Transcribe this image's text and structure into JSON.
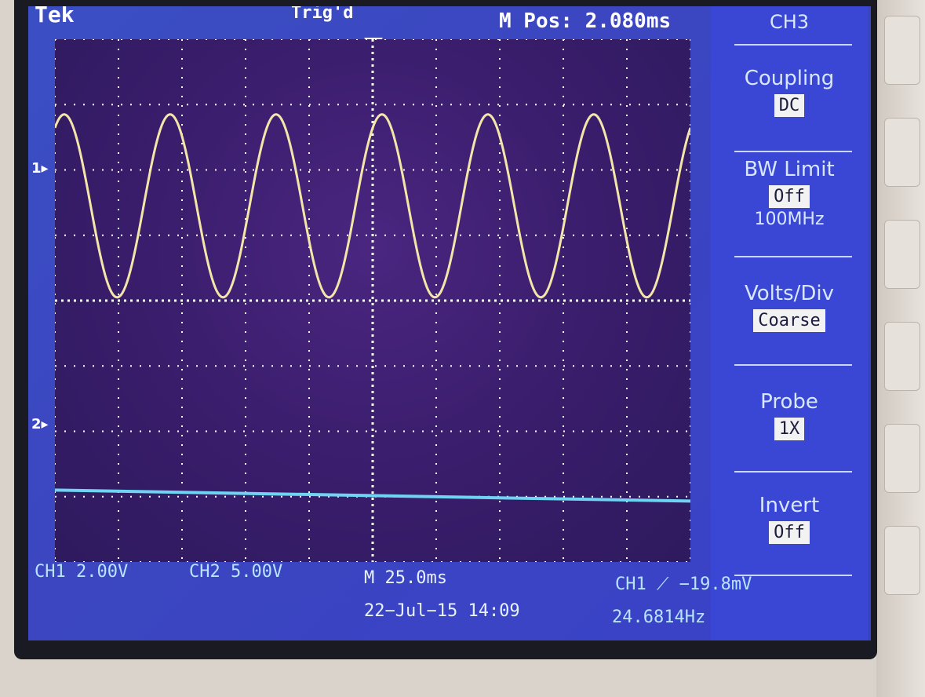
{
  "header": {
    "brand": "Tek",
    "trigger_state": "Trig'd",
    "m_pos": "M Pos: 2.080ms"
  },
  "channel_markers": {
    "ch1": "1▸",
    "ch2": "2▸"
  },
  "side_menu": {
    "title": "CH3",
    "items": [
      {
        "label": "Coupling",
        "value": "DC",
        "extra": ""
      },
      {
        "label": "BW Limit",
        "value": "Off",
        "extra": "100MHz"
      },
      {
        "label": "Volts/Div",
        "value": "Coarse",
        "extra": ""
      },
      {
        "label": "Probe",
        "value": "1X",
        "extra": ""
      },
      {
        "label": "Invert",
        "value": "Off",
        "extra": ""
      }
    ]
  },
  "status": {
    "ch1_scale": "CH1  2.00V",
    "ch2_scale": "CH2  5.00V",
    "timebase": "M 25.0ms",
    "trigger": "CH1 ⟋ −19.8mV",
    "datetime": "22−Jul−15 14:09",
    "frequency": "24.6814Hz"
  },
  "colors": {
    "trace_ch1": "#f3e6a8",
    "trace_ch2": "#6fd3f2",
    "grid": "#ffffff",
    "screen_bg": "#3a1d6c",
    "menu_bg": "#3a47d4"
  },
  "waveform": {
    "ch1": {
      "shape": "sine",
      "cycles_visible": 6,
      "peak_to_peak_div": 2.8,
      "center_div": 1.45
    },
    "ch2": {
      "shape": "flat",
      "level_div": -2.9
    }
  }
}
